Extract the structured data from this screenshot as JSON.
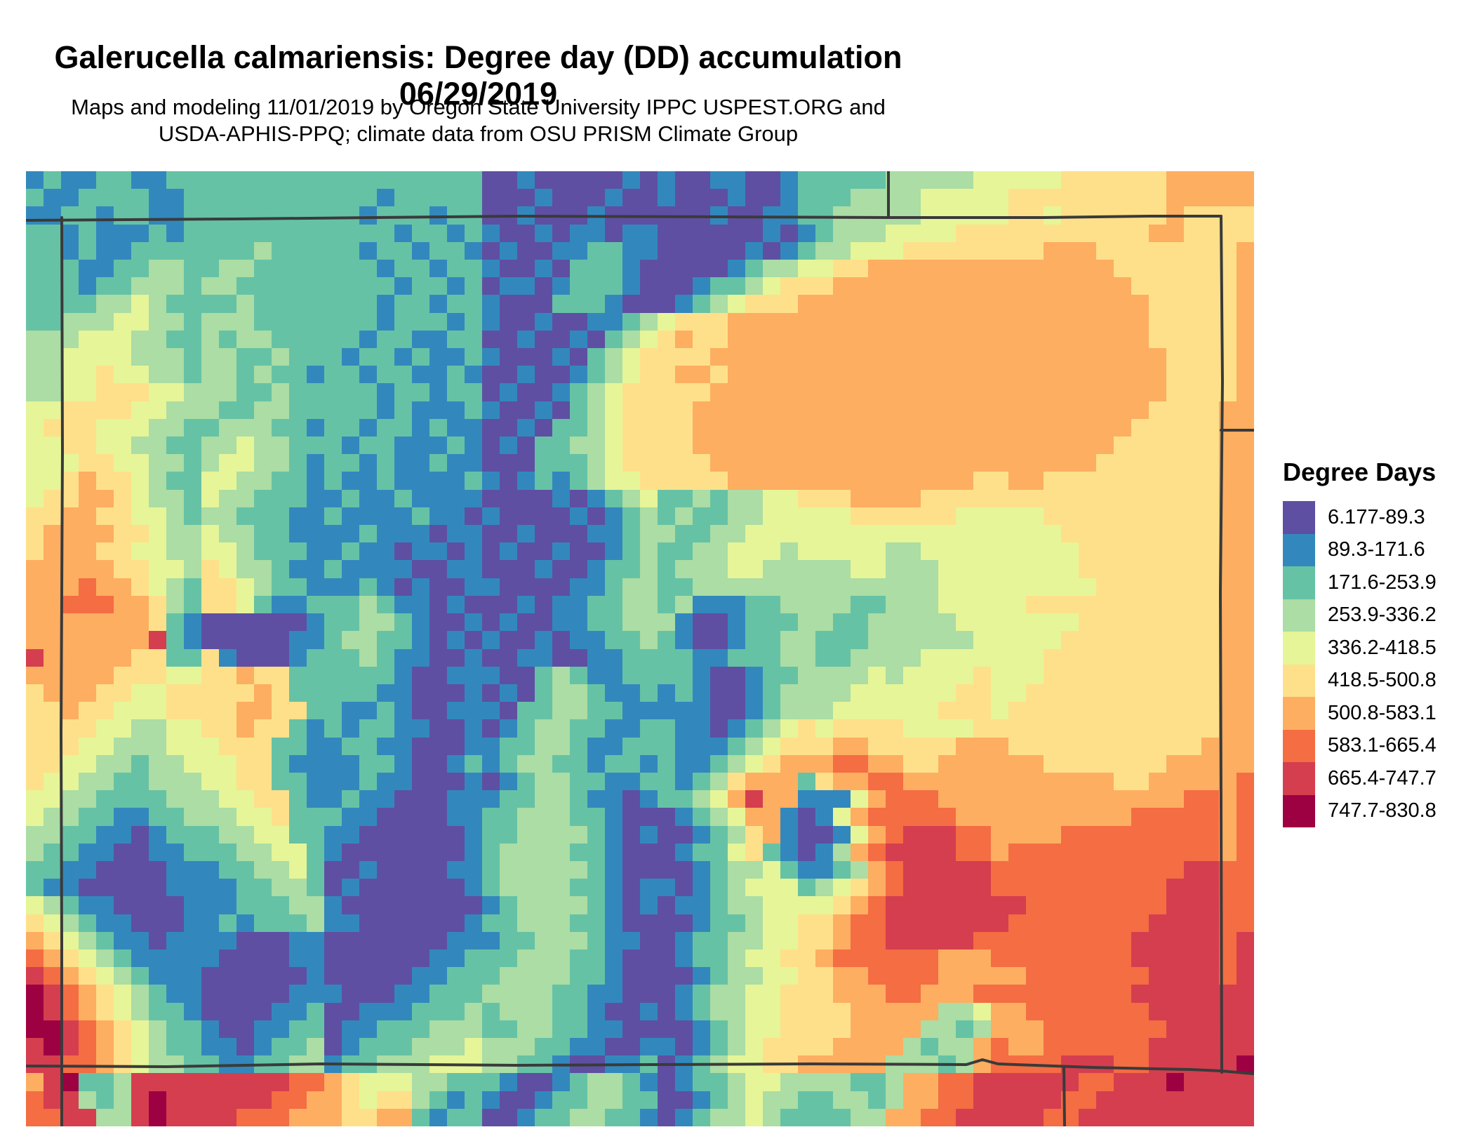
{
  "title": "Galerucella calmariensis: Degree day (DD) accumulation 06/29/2019",
  "subtitle_lines": [
    "Maps and modeling 11/01/2019 by Oregon State University IPPC USPEST.ORG and",
    "USDA-APHIS-PPQ; climate data from OSU PRISM Climate Group"
  ],
  "legend": {
    "title": "Degree Days",
    "items": [
      {
        "label": "6.177-89.3",
        "color": "#5e4fa2"
      },
      {
        "label": "89.3-171.6",
        "color": "#3288bd"
      },
      {
        "label": "171.6-253.9",
        "color": "#66c2a5"
      },
      {
        "label": "253.9-336.2",
        "color": "#abdda4"
      },
      {
        "label": "336.2-418.5",
        "color": "#e6f598"
      },
      {
        "label": "418.5-500.8",
        "color": "#fee08b"
      },
      {
        "label": "500.8-583.1",
        "color": "#fdae61"
      },
      {
        "label": "583.1-665.4",
        "color": "#f46d43"
      },
      {
        "label": "665.4-747.7",
        "color": "#d53e4f"
      },
      {
        "label": "747.7-830.8",
        "color": "#9e0142"
      }
    ]
  },
  "map": {
    "border_color": "#3a3a3a",
    "border_width": 4,
    "raster": {
      "cols": 70,
      "rows": 54,
      "palette": [
        "#5e4fa2",
        "#3288bd",
        "#66c2a5",
        "#abdda4",
        "#e6f598",
        "#fee08b",
        "#fdae61",
        "#f46d43",
        "#d53e4f",
        "#9e0142"
      ],
      "cells": [
        "1211221122222222222222222200100000101001100122222333334444455555566666",
        "2112222112222222222212222200010001001000100122233334444455555555566666",
        "1122122112222222222122212200100010000001001122333334444455455555565555",
        "2212111212222222222221221210010110110000001012333444455555555555665555",
        "2212112222222322222122122101001122110000010123344455555555666555555556",
        "2221122332233222222212212210010222100000123344556666666666666655555556",
        "2221223332332222222221221201101222100012234555666666666666666665555556",
        "2222334322223222222212212210002221000123455566666666666666666666555556",
        "2233344332333222222212221210010011234555666666666666666666666666555556",
        "3334443322323322222122112200100102345655666666666666666666666666555556",
        "3344443332332232221221211210001023455556666666666666666666666666655556",
        "3344544332332322122122112100100123455665666666666666666666666666655556",
        "3344555443332232222212212201001234555556666666666666666666666666655556",
        "4455554433322332222212111210010234555566666666666666666666666666555566",
        "4555444332233322122122121100102234555566666666666666666666666665555566",
        "4455443322334332221221112101022334555566666666666666666666666655555566",
        "4445544332344332122121121100022234555556666666666666666666666555555566",
        "4456554322443322121121111210121234455555666666666666665566555555555566",
        "4556654332433222112112111100001012342232334455566665555555555555555566",
        "5566554432332221121111211010000101232322334444455555544444555555555566",
        "5666655433433221111211101100100011233223344444444444444444455555555566",
        "5666554433443222112110110101001001232233444344444334444444445555555566",
        "6666655443543321121111001100010012232333443333344333444444445555555566",
        "6667665432554322111210100110000112332233333333333333444444444555555566",
        "6677766532554211222321101000101122332311122333322333444445555555555566",
        "6666666521000000122332100101001122333100122233223333344444445555555566",
        "6666666821000001123322101010010112232100122332223333334444455555555566",
        "8666665522510001222321100100110011222211222332233334444444555555555566",
        "6666655544556552222221001110023211222210012233334344445444555555555566",
        "5666554455555652222211000101023321121210012333344444455445555555555566",
        "5565544455556655221121001110223322111110012333444444555455555555555566",
        "5555443344556552121221100101233221122110123454555544445555555555555566",
        "5554433344455522112211000112233211222111234555665555566655555555555666",
        "5544332334445521111221001212332212212112345666776655666666555555566666",
        "5443322333445522111211000101233221122123566625667766666666666655666667",
        "4433222233344552112110001112233211012234686611146777666666666666667767",
        "4332211223334452221100001122333221000123466101467777766666666667777767",
        "3322110122233442211000000122333321010012356100146788877666677777777767",
        "3221100112223344210000000123333221000122452101367888877677777777777767",
        "2211000011122334200100001123333321000012334211236788888777777777778877",
        "2110000011112233201000000123333221011012344423456788888777777777788877",
        "4321100001112223310000000012333321010112334444567888888887777777788877",
        "5432110001121222311000000122333221000012234455677888888877777777888877",
        "6543211011110001100000001112233321100122334455677888887777777778888878",
        "7654321111100001100000011222333221000122344556777777666777777778888878",
        "8765432111000000100000112223333221000012334455667777666667777777888878",
        "9876543211000001110001122233332211000123344555666776667777777778888888",
        "9876543221000011200111222323332210010123344555566666334667777777888888",
        "9987654322100112201122233322332211000012344555566663323666777777788888",
        "8987654322110122301222333433322110011012345555666632336766777777888888",
        "8877654332211223312233344433221001120123445566666333236777788877888889",
        "6892238888888887765444332221001233210122344333322366778888887788898888",
        "7883238988888877665455321210012233220012343322332366778888877888888888",
        "7788338988887776665566212200122332210123343222233667788888778888888888"
      ]
    },
    "borders": [
      {
        "name": "ut-wy-co-north-border",
        "points": [
          [
            0,
            70
          ],
          [
            300,
            68
          ],
          [
            700,
            64
          ],
          [
            1000,
            65
          ],
          [
            1229,
            66
          ],
          [
            1450,
            66
          ],
          [
            1600,
            64
          ],
          [
            1703,
            64
          ]
        ]
      },
      {
        "name": "co-ut-west-border",
        "points": [
          [
            51,
            66
          ],
          [
            52,
            400
          ],
          [
            50,
            800
          ],
          [
            51,
            1100
          ],
          [
            51,
            1361
          ]
        ]
      },
      {
        "name": "co-ne-ks-east-border",
        "points": [
          [
            1703,
            64
          ],
          [
            1705,
            300
          ],
          [
            1702,
            600
          ],
          [
            1703,
            900
          ],
          [
            1704,
            1284
          ]
        ]
      },
      {
        "name": "co-nm-ok-south-border",
        "points": [
          [
            0,
            1275
          ],
          [
            200,
            1276
          ],
          [
            420,
            1272
          ],
          [
            700,
            1274
          ],
          [
            900,
            1273
          ],
          [
            1120,
            1272
          ],
          [
            1340,
            1273
          ],
          [
            1363,
            1266
          ],
          [
            1385,
            1272
          ],
          [
            1520,
            1277
          ],
          [
            1660,
            1280
          ],
          [
            1703,
            1282
          ],
          [
            1749,
            1286
          ]
        ]
      },
      {
        "name": "wy-ne-border",
        "points": [
          [
            1229,
            0
          ],
          [
            1229,
            66
          ]
        ]
      },
      {
        "name": "ne-ks-border",
        "points": [
          [
            1703,
            369
          ],
          [
            1749,
            369
          ]
        ]
      },
      {
        "name": "nm-ok-border",
        "points": [
          [
            1479,
            1276
          ],
          [
            1480,
            1361
          ]
        ]
      }
    ]
  }
}
